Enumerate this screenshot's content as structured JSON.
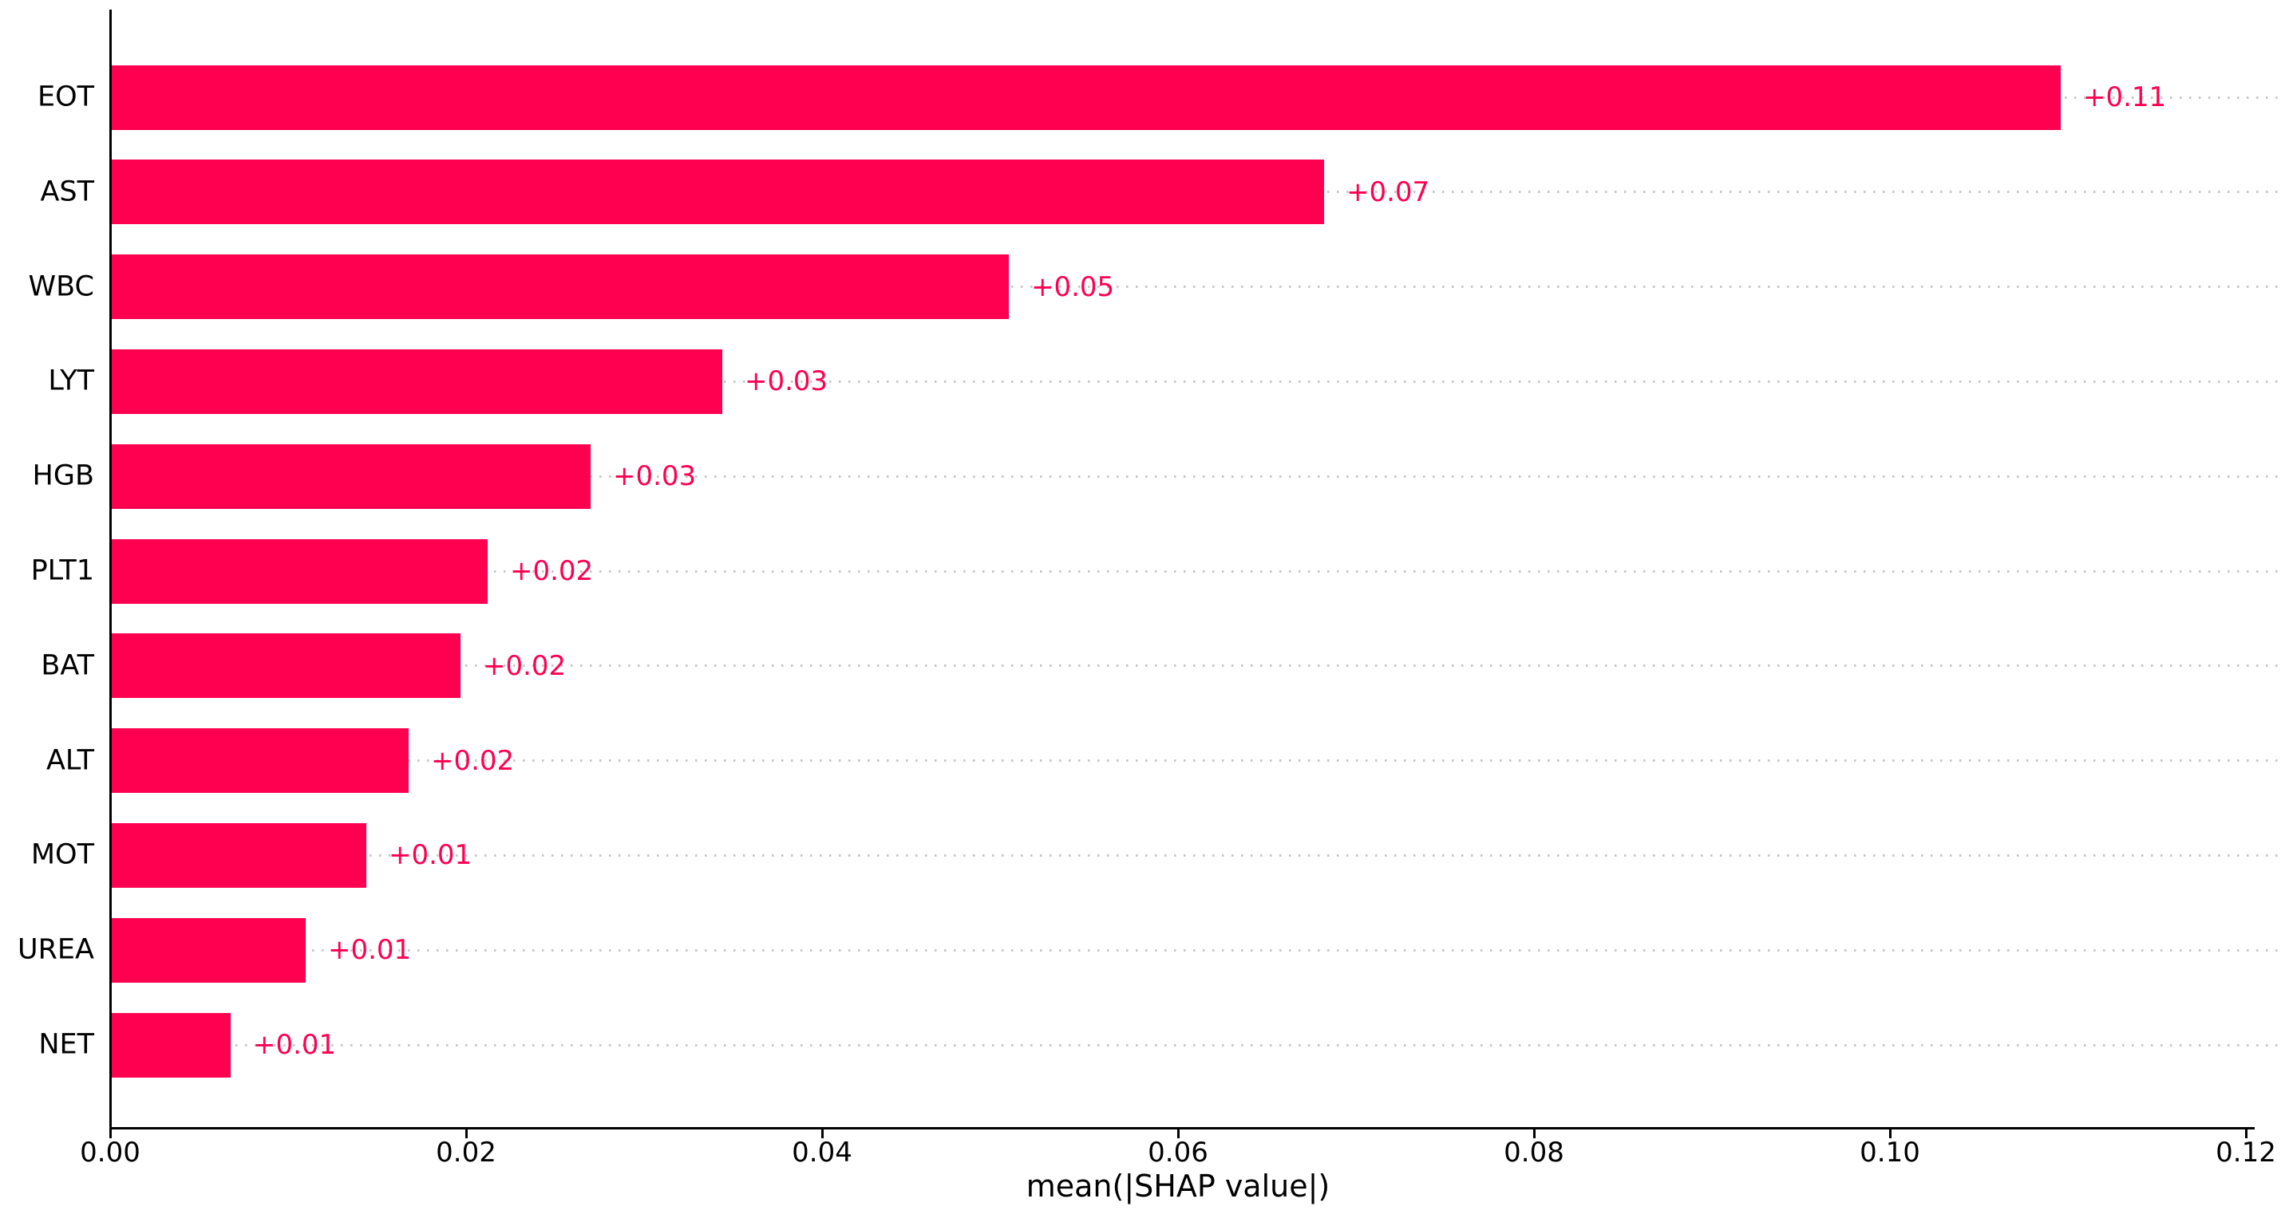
{
  "chart_data": {
    "type": "bar",
    "orientation": "horizontal",
    "title": "",
    "xlabel": "mean(|SHAP value|)",
    "ylabel": "",
    "categories": [
      "EOT",
      "AST",
      "WBC",
      "LYT",
      "HGB",
      "PLT1",
      "BAT",
      "ALT",
      "MOT",
      "UREA",
      "NET"
    ],
    "values": [
      0.1095,
      0.0681,
      0.0504,
      0.0343,
      0.0269,
      0.0211,
      0.0196,
      0.0167,
      0.0143,
      0.0109,
      0.0067
    ],
    "value_labels": [
      "+0.11",
      "+0.07",
      "+0.05",
      "+0.03",
      "+0.03",
      "+0.02",
      "+0.02",
      "+0.02",
      "+0.01",
      "+0.01",
      "+0.01"
    ],
    "xlim": [
      0.0,
      0.12
    ],
    "x_ticks": [
      0.0,
      0.02,
      0.04,
      0.06,
      0.08,
      0.1,
      0.12
    ],
    "x_tick_labels": [
      "0.00",
      "0.02",
      "0.04",
      "0.06",
      "0.08",
      "0.10",
      "0.12"
    ],
    "grid": "horizontal-dotted",
    "legend": null,
    "colors": {
      "bar": "#ff0051",
      "value_label": "#ff0051",
      "axis": "#000000",
      "tick_label": "#000000",
      "gridline": "#c7c7c7",
      "background": "#ffffff"
    }
  }
}
